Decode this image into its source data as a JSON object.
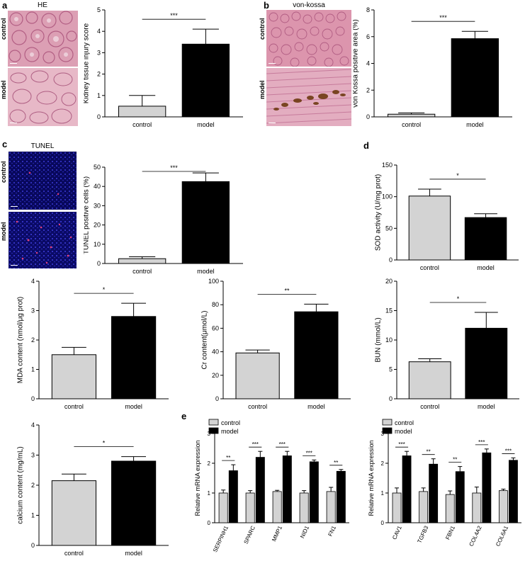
{
  "panels": {
    "a": "a",
    "b": "b",
    "c": "c",
    "d": "d",
    "e": "e"
  },
  "images": {
    "he_title": "HE",
    "vk_title": "von-kossa",
    "tunel_title": "TUNEL",
    "row_control": "control",
    "row_model": "model"
  },
  "colors": {
    "control_bar": "#d3d3d3",
    "model_bar": "#000000",
    "he_tissue": "#d98fa7",
    "vk_tissue": "#d98da6",
    "tunel_bg": "#0a0a6e"
  },
  "chart_data": [
    {
      "id": "kidney",
      "type": "bar",
      "categories": [
        "control",
        "model"
      ],
      "values": [
        0.5,
        3.4
      ],
      "errors": [
        0.5,
        0.7
      ],
      "ylabel": "Kidney tissue injury score",
      "ylim": [
        0,
        5
      ],
      "yticks": [
        "0",
        "1",
        "2",
        "3",
        "4",
        "5"
      ],
      "significance": "***"
    },
    {
      "id": "vonkossa",
      "type": "bar",
      "categories": [
        "control",
        "model"
      ],
      "values": [
        0.2,
        5.85
      ],
      "errors": [
        0.1,
        0.55
      ],
      "ylabel": "von Kossa positive area (%)",
      "ylim": [
        0,
        8
      ],
      "yticks": [
        "0",
        "2",
        "4",
        "6",
        "8"
      ],
      "significance": "***"
    },
    {
      "id": "tunel",
      "type": "bar",
      "categories": [
        "control",
        "model"
      ],
      "values": [
        2.5,
        42.5
      ],
      "errors": [
        1.0,
        4.5
      ],
      "ylabel": "TUNEL positive cells (%)",
      "ylim": [
        0,
        50
      ],
      "yticks": [
        "0",
        "10",
        "20",
        "30",
        "40",
        "50"
      ],
      "significance": "***"
    },
    {
      "id": "sod",
      "type": "bar",
      "categories": [
        "control",
        "model"
      ],
      "values": [
        101,
        67
      ],
      "errors": [
        11,
        6
      ],
      "ylabel": "SOD activity (U/mg prot)",
      "ylim": [
        0,
        150
      ],
      "yticks": [
        "0",
        "50",
        "100",
        "150"
      ],
      "significance": "*"
    },
    {
      "id": "mda",
      "type": "bar",
      "categories": [
        "control",
        "model"
      ],
      "values": [
        1.5,
        2.8
      ],
      "errors": [
        0.25,
        0.45
      ],
      "ylabel": "MDA content (nmol/μg prot)",
      "ylim": [
        0,
        4
      ],
      "yticks": [
        "0",
        "1",
        "2",
        "3",
        "4"
      ],
      "significance": "*"
    },
    {
      "id": "cr",
      "type": "bar",
      "categories": [
        "control",
        "model"
      ],
      "values": [
        39,
        74
      ],
      "errors": [
        2.5,
        6.5
      ],
      "ylabel": "Cr content(μmol/L)",
      "ylim": [
        0,
        100
      ],
      "yticks": [
        "0",
        "20",
        "40",
        "60",
        "80",
        "100"
      ],
      "significance": "**"
    },
    {
      "id": "bun",
      "type": "bar",
      "categories": [
        "control",
        "model"
      ],
      "values": [
        6.3,
        12.0
      ],
      "errors": [
        0.5,
        2.7
      ],
      "ylabel": "BUN (mmol/L)",
      "ylim": [
        0,
        20
      ],
      "yticks": [
        "0",
        "5",
        "10",
        "15",
        "20"
      ],
      "significance": "*"
    },
    {
      "id": "calcium",
      "type": "bar",
      "categories": [
        "control",
        "model"
      ],
      "values": [
        2.15,
        2.8
      ],
      "errors": [
        0.22,
        0.15
      ],
      "ylabel": "calcium content (mg/mL)",
      "ylim": [
        0,
        4
      ],
      "yticks": [
        "0",
        "1",
        "2",
        "3",
        "4"
      ],
      "significance": "*"
    },
    {
      "id": "mrna1",
      "type": "bar",
      "categories": [
        "SERPINH1",
        "SPARC",
        "MMP1",
        "NID1",
        "FN1"
      ],
      "series": [
        {
          "name": "control",
          "values": [
            1.0,
            1.0,
            1.05,
            1.0,
            1.05
          ],
          "errors": [
            0.1,
            0.08,
            0.04,
            0.08,
            0.14
          ]
        },
        {
          "name": "model",
          "values": [
            1.75,
            2.2,
            2.25,
            2.05,
            1.73
          ],
          "errors": [
            0.2,
            0.2,
            0.15,
            0.06,
            0.06
          ]
        }
      ],
      "ylabel": "Relative mRNA expression",
      "ylim": [
        0,
        3
      ],
      "yticks": [
        "0",
        "1",
        "2",
        "3"
      ],
      "significance": [
        "**",
        "***",
        "***",
        "***",
        "**"
      ]
    },
    {
      "id": "mrna2",
      "type": "bar",
      "categories": [
        "CAV1",
        "TGFB3",
        "FBN1",
        "COL4A2",
        "COL6A1"
      ],
      "series": [
        {
          "name": "control",
          "values": [
            1.0,
            1.05,
            0.95,
            1.0,
            1.08
          ],
          "errors": [
            0.17,
            0.12,
            0.12,
            0.2,
            0.05
          ]
        },
        {
          "name": "model",
          "values": [
            2.25,
            1.97,
            1.72,
            2.35,
            2.1
          ],
          "errors": [
            0.15,
            0.18,
            0.17,
            0.13,
            0.08
          ]
        }
      ],
      "ylabel": "Relative mRNA expression",
      "ylim": [
        0,
        3
      ],
      "yticks": [
        "0",
        "1",
        "2",
        "3"
      ],
      "significance": [
        "***",
        "**",
        "**",
        "***",
        "***"
      ]
    }
  ]
}
